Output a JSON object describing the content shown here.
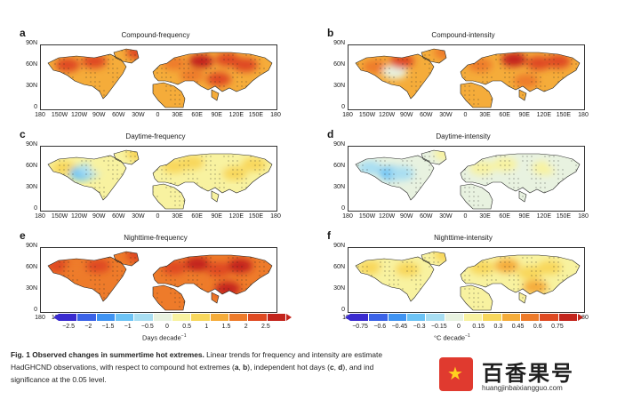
{
  "figure": {
    "panels": [
      {
        "letter": "a",
        "title": "Compound-frequency"
      },
      {
        "letter": "b",
        "title": "Compound-intensity"
      },
      {
        "letter": "c",
        "title": "Daytime-frequency"
      },
      {
        "letter": "d",
        "title": "Daytime-intensity"
      },
      {
        "letter": "e",
        "title": "Nighttime-frequency"
      },
      {
        "letter": "f",
        "title": "Nighttime-intensity"
      }
    ],
    "lat_labels": [
      "90N",
      "60N",
      "30N",
      "0"
    ],
    "lon_labels": [
      "180",
      "150W",
      "120W",
      "90W",
      "60W",
      "30W",
      "0",
      "30E",
      "60E",
      "90E",
      "120E",
      "150E",
      "180"
    ],
    "colorbar_freq": {
      "ticks": [
        "−2.5",
        "−2",
        "−1.5",
        "−1",
        "−0.5",
        "0",
        "0.5",
        "1",
        "1.5",
        "2",
        "2.5"
      ],
      "unit": "Days decade",
      "unit_sup": "−1"
    },
    "colorbar_int": {
      "ticks": [
        "−0.75",
        "−0.6",
        "−0.45",
        "−0.3",
        "−0.15",
        "0",
        "0.15",
        "0.3",
        "0.45",
        "0.6",
        "0.75"
      ],
      "unit": "°C decade",
      "unit_sup": "−1"
    },
    "palette": [
      "#3a2bd0",
      "#3b63e8",
      "#3f93f2",
      "#6cc3f5",
      "#a8def2",
      "#e8f2e0",
      "#f8f2a0",
      "#f8d75c",
      "#f5ac3a",
      "#ee7b2a",
      "#df4a22",
      "#c3241c"
    ]
  },
  "caption": {
    "fig_label": "Fig. 1",
    "bold_title": "Observed changes in summertime hot extremes.",
    "line1_rest": " Linear trends for frequency and intensity are estimate",
    "line2_a": "HadGHCND observations, with respect to compound hot extremes (",
    "a": "a",
    "b": "b",
    "line2_b": "), independent hot days (",
    "c": "c",
    "d": "d",
    "line2_c": "), and ind",
    "line3": "significance at the 0.05 level."
  },
  "watermark": {
    "title": "百香果号",
    "url": "huangjinbaixiangguo.com"
  }
}
